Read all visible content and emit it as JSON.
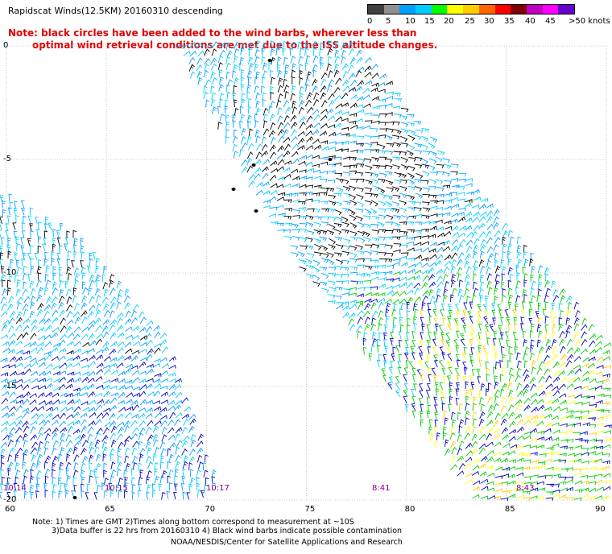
{
  "header": {
    "title": "Rapidscat Winds(12.5KM) 20160310 descending",
    "note_line1": "Note: black circles have been added to the wind barbs, wherever less than",
    "note_line2": "optimal wind retrieval conditions are met due to the ISS altitude changes."
  },
  "legend": {
    "colors": [
      "#404040",
      "#909090",
      "#00a0ff",
      "#00ccff",
      "#00ff00",
      "#ffff00",
      "#ffcc00",
      "#ff6600",
      "#ff0000",
      "#800000",
      "#c000c0",
      "#ff00ff",
      "#6600cc"
    ],
    "labels": [
      "0",
      "5",
      "10",
      "15",
      "20",
      "25",
      "30",
      "35",
      "40",
      "45",
      ">50 knots"
    ]
  },
  "axes": {
    "lat_labels": [
      "0",
      "-5",
      "-10",
      "-15",
      "-20"
    ],
    "lon_labels": [
      "60",
      "65",
      "70",
      "75",
      "80",
      "85",
      "90"
    ],
    "time_labels": [
      "10:14",
      "10:15",
      "10:17",
      "8:41",
      "8:43"
    ]
  },
  "footer": {
    "line1": "Note: 1) Times are GMT 2)Times along bottom correspond to measurement at ~10S",
    "line2": "3)Data buffer is 22 hrs from 20160310 4) Black wind barbs indicate possible contamination",
    "line3": "NOAA/NESDIS/Center for Satellite Applications and Research"
  },
  "map": {
    "lon_range": [
      60,
      90
    ],
    "lat_range": [
      -20,
      0
    ]
  }
}
